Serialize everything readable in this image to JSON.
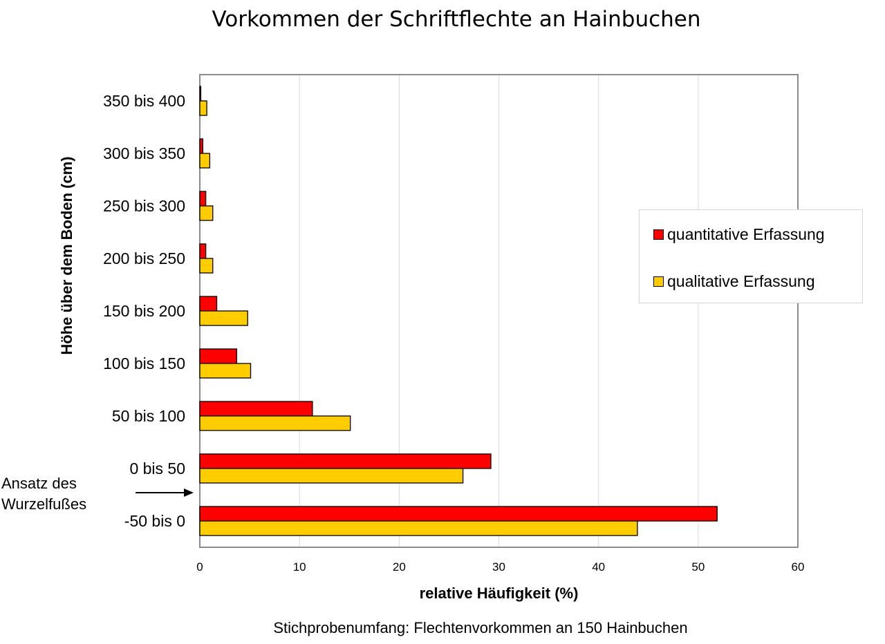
{
  "chart_data": {
    "type": "bar",
    "orientation": "horizontal",
    "title": "Vorkommen der Schriftflechte an Hainbuchen",
    "subtitle": "Stichprobenumfang: Flechtenvorkommen an 150 Hainbuchen",
    "xlabel": "relative Häufigkeit (%)",
    "ylabel": "Höhe über dem Boden (cm)",
    "xlim": [
      0,
      60
    ],
    "xticks": [
      0,
      10,
      20,
      30,
      40,
      50,
      60
    ],
    "grid": true,
    "legend_position": "right",
    "categories": [
      "350 bis 400",
      "300 bis 350",
      "250 bis 300",
      "200 bis 250",
      "150 bis 200",
      "100 bis 150",
      "50 bis 100",
      "0 bis 50",
      "-50 bis 0"
    ],
    "series": [
      {
        "name": "quantitative Erfassung",
        "color": "#ff0000",
        "values": [
          0.1,
          0.3,
          0.6,
          0.6,
          1.7,
          3.7,
          11.3,
          29.2,
          51.9
        ]
      },
      {
        "name": "qualitative Erfassung",
        "color": "#ffcc00",
        "values": [
          0.7,
          1.0,
          1.3,
          1.3,
          4.8,
          5.1,
          15.1,
          26.4,
          43.9
        ]
      }
    ],
    "annotation": {
      "text_line1": "Ansatz des",
      "text_line2": "Wurzelfußes"
    }
  }
}
